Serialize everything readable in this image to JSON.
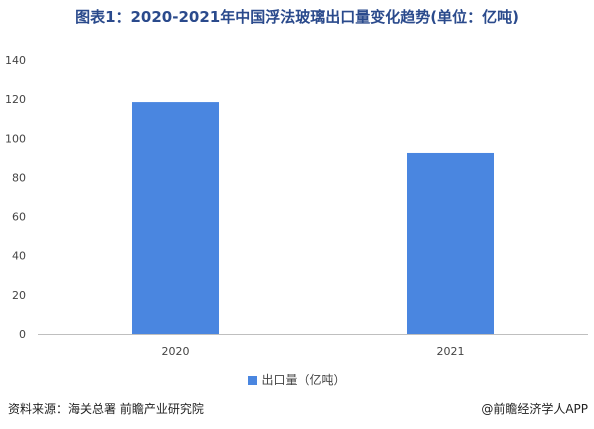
{
  "chart_data": {
    "type": "bar",
    "title": "图表1：2020-2021年中国浮法玻璃出口量变化趋势(单位：亿吨)",
    "categories": [
      "2020",
      "2021"
    ],
    "series": [
      {
        "name": "出口量（亿吨）",
        "values": [
          118.5,
          92.5
        ]
      }
    ],
    "ylim": [
      0,
      140
    ],
    "yticks": [
      0,
      20,
      40,
      60,
      80,
      100,
      120,
      140
    ],
    "grid": false,
    "legend_position": "bottom",
    "colors": {
      "bar": "#4a86e0",
      "axis": "#bfbfbf"
    }
  },
  "footer": {
    "source": "资料来源：海关总署 前瞻产业研究院",
    "brand": "@前瞻经济学人APP"
  }
}
